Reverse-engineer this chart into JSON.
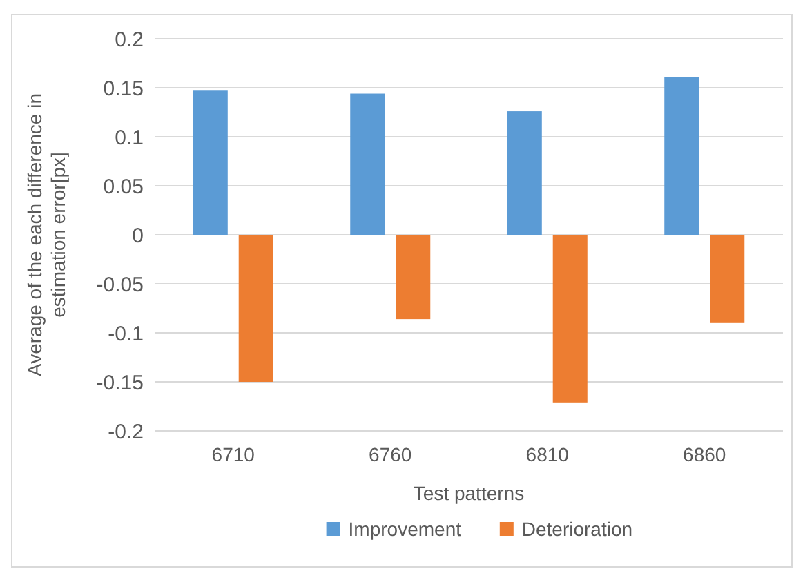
{
  "chart_data": {
    "type": "bar",
    "xlabel": "Test patterns",
    "ylabel": "Average of the each difference in estimation error[px]",
    "categories": [
      "6710",
      "6760",
      "6810",
      "6860"
    ],
    "series": [
      {
        "name": "Improvement",
        "color": "#5b9bd5",
        "values": [
          0.147,
          0.144,
          0.126,
          0.161
        ]
      },
      {
        "name": "Deterioration",
        "color": "#ed7d31",
        "values": [
          -0.15,
          -0.086,
          -0.171,
          -0.09
        ]
      }
    ],
    "ylim": [
      -0.2,
      0.2
    ],
    "yticks": [
      -0.2,
      -0.15,
      -0.1,
      -0.05,
      0,
      0.05,
      0.1,
      0.15,
      0.2
    ],
    "grid": "y",
    "legend": "bottom"
  }
}
